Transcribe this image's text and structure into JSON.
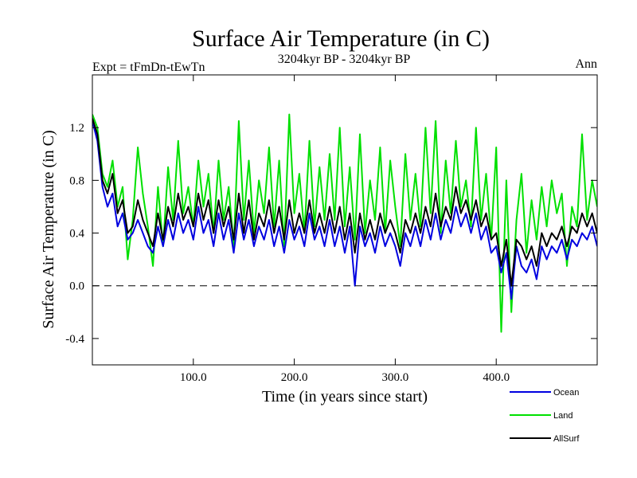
{
  "chart_data": {
    "type": "line",
    "title": "Surface Air Temperature (in C)",
    "subtitle_left": "Expt = tFmDn-tEwTn",
    "subtitle_center": "3204kyr BP - 3204kyr BP",
    "subtitle_right": "Ann",
    "xlabel": "Time (in years since start)",
    "ylabel": "Surface Air Temperature (in C)",
    "xlim": [
      0,
      500
    ],
    "ylim": [
      -0.6,
      1.6
    ],
    "x_ticks": [
      100,
      200,
      300,
      400
    ],
    "x_tick_labels": [
      "100.0",
      "200.0",
      "300.0",
      "400.0"
    ],
    "y_ticks": [
      -0.4,
      0.0,
      0.4,
      0.8,
      1.2
    ],
    "y_tick_labels": [
      "-0.4",
      "0.0",
      "0.4",
      "0.8",
      "1.2"
    ],
    "reference_line": 0.0,
    "legend_position": "bottom-right",
    "series": [
      {
        "name": "Land",
        "color": "#00e000",
        "x": [
          0,
          5,
          10,
          15,
          20,
          25,
          30,
          35,
          40,
          45,
          50,
          55,
          60,
          65,
          70,
          75,
          80,
          85,
          90,
          95,
          100,
          105,
          110,
          115,
          120,
          125,
          130,
          135,
          140,
          145,
          150,
          155,
          160,
          165,
          170,
          175,
          180,
          185,
          190,
          195,
          200,
          205,
          210,
          215,
          220,
          225,
          230,
          235,
          240,
          245,
          250,
          255,
          260,
          265,
          270,
          275,
          280,
          285,
          290,
          295,
          300,
          305,
          310,
          315,
          320,
          325,
          330,
          335,
          340,
          345,
          350,
          355,
          360,
          365,
          370,
          375,
          380,
          385,
          390,
          395,
          400,
          405,
          410,
          415,
          420,
          425,
          430,
          435,
          440,
          445,
          450,
          455,
          460,
          465,
          470,
          475,
          480,
          485,
          490,
          495,
          500
        ],
        "values": [
          1.3,
          1.2,
          0.85,
          0.75,
          0.95,
          0.6,
          0.75,
          0.2,
          0.5,
          1.05,
          0.7,
          0.45,
          0.15,
          0.75,
          0.3,
          0.9,
          0.5,
          1.1,
          0.55,
          0.75,
          0.45,
          0.95,
          0.6,
          0.85,
          0.4,
          0.95,
          0.5,
          0.75,
          0.3,
          1.25,
          0.5,
          0.95,
          0.4,
          0.8,
          0.55,
          1.05,
          0.45,
          0.95,
          0.3,
          1.3,
          0.55,
          0.85,
          0.4,
          1.1,
          0.45,
          0.9,
          0.5,
          1.0,
          0.5,
          1.2,
          0.45,
          0.9,
          0.35,
          1.15,
          0.4,
          0.8,
          0.5,
          1.05,
          0.4,
          0.95,
          0.6,
          0.3,
          1.0,
          0.5,
          0.85,
          0.45,
          1.2,
          0.55,
          1.25,
          0.4,
          0.95,
          0.55,
          1.1,
          0.6,
          0.8,
          0.45,
          1.2,
          0.5,
          0.85,
          0.35,
          1.05,
          -0.35,
          0.8,
          -0.2,
          0.5,
          0.85,
          0.25,
          0.65,
          0.35,
          0.75,
          0.45,
          0.8,
          0.55,
          0.7,
          0.15,
          0.6,
          0.45,
          1.15,
          0.5,
          0.8,
          0.6
        ]
      },
      {
        "name": "Ocean",
        "color": "#0000e0",
        "x": [
          0,
          5,
          10,
          15,
          20,
          25,
          30,
          35,
          40,
          45,
          50,
          55,
          60,
          65,
          70,
          75,
          80,
          85,
          90,
          95,
          100,
          105,
          110,
          115,
          120,
          125,
          130,
          135,
          140,
          145,
          150,
          155,
          160,
          165,
          170,
          175,
          180,
          185,
          190,
          195,
          200,
          205,
          210,
          215,
          220,
          225,
          230,
          235,
          240,
          245,
          250,
          255,
          260,
          265,
          270,
          275,
          280,
          285,
          290,
          295,
          300,
          305,
          310,
          315,
          320,
          325,
          330,
          335,
          340,
          345,
          350,
          355,
          360,
          365,
          370,
          375,
          380,
          385,
          390,
          395,
          400,
          405,
          410,
          415,
          420,
          425,
          430,
          435,
          440,
          445,
          450,
          455,
          460,
          465,
          470,
          475,
          480,
          485,
          490,
          495,
          500
        ],
        "values": [
          1.25,
          1.1,
          0.75,
          0.6,
          0.7,
          0.45,
          0.55,
          0.35,
          0.4,
          0.5,
          0.4,
          0.3,
          0.25,
          0.45,
          0.3,
          0.5,
          0.35,
          0.55,
          0.4,
          0.5,
          0.35,
          0.6,
          0.4,
          0.5,
          0.3,
          0.55,
          0.35,
          0.5,
          0.25,
          0.55,
          0.35,
          0.5,
          0.3,
          0.45,
          0.35,
          0.5,
          0.3,
          0.45,
          0.25,
          0.5,
          0.35,
          0.45,
          0.3,
          0.55,
          0.35,
          0.45,
          0.3,
          0.5,
          0.3,
          0.45,
          0.25,
          0.45,
          0.0,
          0.45,
          0.3,
          0.4,
          0.25,
          0.45,
          0.3,
          0.4,
          0.3,
          0.15,
          0.4,
          0.3,
          0.45,
          0.3,
          0.5,
          0.35,
          0.55,
          0.35,
          0.5,
          0.4,
          0.6,
          0.45,
          0.55,
          0.4,
          0.55,
          0.35,
          0.45,
          0.25,
          0.3,
          0.1,
          0.25,
          -0.1,
          0.3,
          0.15,
          0.1,
          0.2,
          0.05,
          0.3,
          0.2,
          0.3,
          0.25,
          0.35,
          0.2,
          0.35,
          0.3,
          0.4,
          0.35,
          0.45,
          0.3
        ]
      },
      {
        "name": "AllSurf",
        "color": "#000000",
        "x": [
          0,
          5,
          10,
          15,
          20,
          25,
          30,
          35,
          40,
          45,
          50,
          55,
          60,
          65,
          70,
          75,
          80,
          85,
          90,
          95,
          100,
          105,
          110,
          115,
          120,
          125,
          130,
          135,
          140,
          145,
          150,
          155,
          160,
          165,
          170,
          175,
          180,
          185,
          190,
          195,
          200,
          205,
          210,
          215,
          220,
          225,
          230,
          235,
          240,
          245,
          250,
          255,
          260,
          265,
          270,
          275,
          280,
          285,
          290,
          295,
          300,
          305,
          310,
          315,
          320,
          325,
          330,
          335,
          340,
          345,
          350,
          355,
          360,
          365,
          370,
          375,
          380,
          385,
          390,
          395,
          400,
          405,
          410,
          415,
          420,
          425,
          430,
          435,
          440,
          445,
          450,
          455,
          460,
          465,
          470,
          475,
          480,
          485,
          490,
          495,
          500
        ],
        "values": [
          1.27,
          1.15,
          0.8,
          0.7,
          0.85,
          0.55,
          0.65,
          0.4,
          0.45,
          0.65,
          0.5,
          0.4,
          0.3,
          0.55,
          0.35,
          0.6,
          0.45,
          0.7,
          0.5,
          0.6,
          0.45,
          0.7,
          0.5,
          0.65,
          0.4,
          0.65,
          0.45,
          0.6,
          0.35,
          0.7,
          0.4,
          0.65,
          0.35,
          0.55,
          0.45,
          0.65,
          0.4,
          0.6,
          0.35,
          0.65,
          0.4,
          0.55,
          0.4,
          0.65,
          0.4,
          0.55,
          0.4,
          0.6,
          0.4,
          0.6,
          0.35,
          0.55,
          0.25,
          0.55,
          0.35,
          0.5,
          0.35,
          0.55,
          0.4,
          0.5,
          0.4,
          0.25,
          0.5,
          0.4,
          0.55,
          0.4,
          0.6,
          0.45,
          0.7,
          0.45,
          0.6,
          0.5,
          0.75,
          0.55,
          0.65,
          0.5,
          0.65,
          0.45,
          0.55,
          0.35,
          0.4,
          0.15,
          0.35,
          0.0,
          0.35,
          0.3,
          0.2,
          0.3,
          0.15,
          0.4,
          0.3,
          0.4,
          0.35,
          0.45,
          0.3,
          0.45,
          0.4,
          0.55,
          0.45,
          0.55,
          0.4
        ]
      }
    ],
    "legend_order": [
      "Ocean",
      "Land",
      "AllSurf"
    ]
  }
}
